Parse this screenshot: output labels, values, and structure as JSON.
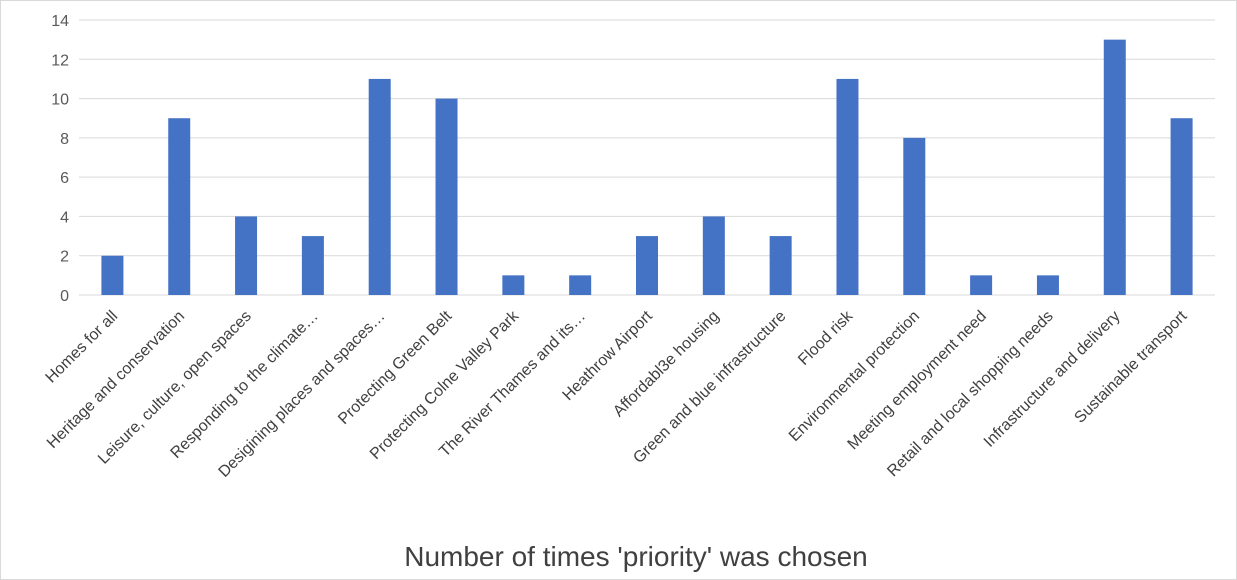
{
  "chart_data": {
    "type": "bar",
    "title": "",
    "xlabel": "Number of times 'priority' was chosen",
    "ylabel": "",
    "ylim": [
      0,
      14
    ],
    "yticks": [
      0,
      2,
      4,
      6,
      8,
      10,
      12,
      14
    ],
    "grid": true,
    "bar_color": "#4472C4",
    "categories": [
      "Homes for all",
      "Heritage and conservation",
      "Leisure, culture, open spaces",
      "Responding to the climate…",
      "Desigining places and spaces…",
      "Protecting Green Belt",
      "Protecting Colne Valley Park",
      "The River Thames and its…",
      "Heathrow Airport",
      "Affordabl3e housing",
      "Green and blue infrastructure",
      "Flood risk",
      "Environmental protection",
      "Meeting employment need",
      "Retail and local shopping needs",
      "Infrastructure and delivery",
      "Sustainable transport"
    ],
    "values": [
      2,
      9,
      4,
      3,
      11,
      10,
      1,
      1,
      3,
      4,
      3,
      11,
      8,
      1,
      1,
      13,
      9
    ]
  }
}
